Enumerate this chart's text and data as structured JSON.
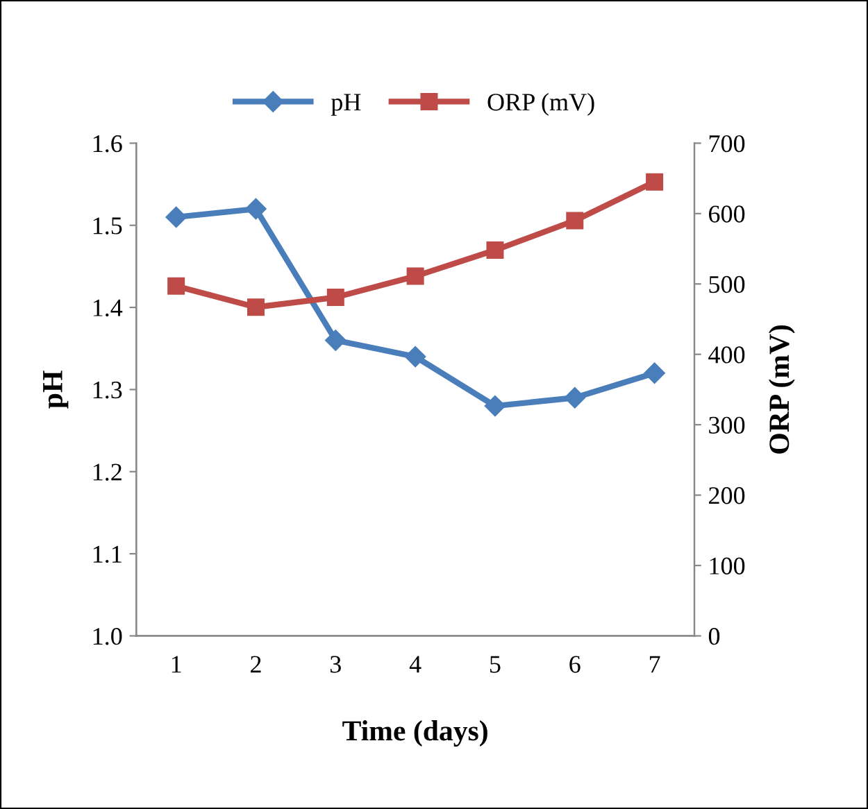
{
  "chart_data": {
    "type": "line",
    "xlabel": "Time (days)",
    "ylabel": "pH",
    "y2label": "ORP (mV)",
    "categories": [
      "1",
      "2",
      "3",
      "4",
      "5",
      "6",
      "7"
    ],
    "series": [
      {
        "name": "pH",
        "color": "#4a7ebb",
        "marker": "diamond",
        "values": [
          1.51,
          1.52,
          1.36,
          1.34,
          1.28,
          1.29,
          1.32
        ]
      },
      {
        "name": "ORP (mV)",
        "color": "#be4b48",
        "marker": "square",
        "axis": "y2",
        "values": [
          497,
          467,
          481,
          511,
          548,
          590,
          645
        ]
      }
    ],
    "ylim": [
      1.0,
      1.6
    ],
    "yticks": [
      {
        "value": 1.0,
        "label": "1.0"
      },
      1.1,
      1.2,
      1.3,
      1.4,
      1.5,
      1.6
    ],
    "y2lim": [
      0,
      700
    ],
    "y2ticks": [
      0,
      100,
      200,
      300,
      400,
      500,
      600,
      700
    ],
    "grid": false,
    "legend": "top",
    "line_style": "solid"
  }
}
